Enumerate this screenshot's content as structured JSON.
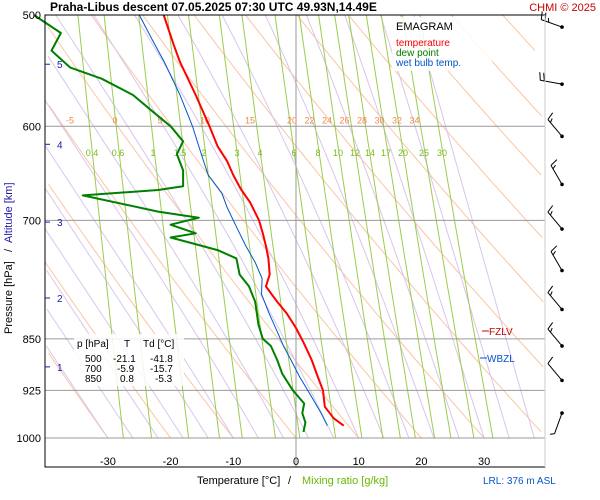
{
  "header": {
    "title": "Praha-Libus   descent   07.05.2025 07:30 UTC   49.93N,14.49E",
    "credit": "CHMI © 2025",
    "credit_color": "#cc0000"
  },
  "legend": {
    "title": "EMAGRAM",
    "items": [
      {
        "label": "temperature",
        "color": "#ff0000"
      },
      {
        "label": "dew point",
        "color": "#008000"
      },
      {
        "label": "wet bulb temp.",
        "color": "#0055cc"
      }
    ]
  },
  "axes": {
    "y_label_pressure": "Pressure [hPa]",
    "y_label_sep": "/",
    "y_label_altitude": "Altitude [km]",
    "x_label_temp": "Temperature [°C]",
    "x_label_sep": "/",
    "x_label_mix": "Mixing ratio [g/kg]"
  },
  "table": {
    "headers": [
      "p [hPa]",
      "T",
      "Td [°C]"
    ],
    "rows": [
      [
        "500",
        "-21.1",
        "-41.8"
      ],
      [
        "700",
        "-5.9",
        "-15.7"
      ],
      [
        "850",
        "0.8",
        "-5.3"
      ]
    ]
  },
  "markers": {
    "fzlv": "FZLV",
    "wbzl": "WBZL",
    "lrl": "LRL: 376 m ASL"
  },
  "chart_data": {
    "type": "line",
    "title": "EMAGRAM",
    "xlabel": "Temperature [°C]",
    "ylabel": "Pressure [hPa]",
    "xlim": [
      -40,
      40
    ],
    "ylim": [
      1000,
      500
    ],
    "y_scale": "log",
    "grid": true,
    "x_ticks": [
      -30,
      -20,
      -10,
      0,
      10,
      20,
      30
    ],
    "p_ticks": [
      500,
      600,
      700,
      850,
      925,
      1000
    ],
    "km_ticks": [
      {
        "label": "1",
        "p": 890
      },
      {
        "label": "2",
        "p": 795
      },
      {
        "label": "3",
        "p": 702
      },
      {
        "label": "4",
        "p": 618
      },
      {
        "label": "5",
        "p": 542
      }
    ],
    "dry_adiabat_labels": [
      -5,
      0,
      5,
      10,
      15
    ],
    "moist_adiabat_labels": [
      20,
      22,
      24,
      26,
      28,
      30,
      32,
      34
    ],
    "mixing_ratio_labels": [
      0.4,
      0.6,
      1,
      1.5,
      2,
      3,
      4,
      6,
      8,
      10,
      12,
      14,
      17,
      20,
      25,
      30
    ],
    "series": [
      {
        "name": "temperature",
        "color": "#ff0000",
        "points": [
          [
            7.6,
            980
          ],
          [
            6.0,
            968
          ],
          [
            4.6,
            950
          ],
          [
            4.3,
            925
          ],
          [
            3.5,
            905
          ],
          [
            2.5,
            880
          ],
          [
            1.2,
            855
          ],
          [
            0.0,
            835
          ],
          [
            -1.5,
            815
          ],
          [
            -3.0,
            800
          ],
          [
            -4.8,
            780
          ],
          [
            -4.2,
            765
          ],
          [
            -4.4,
            745
          ],
          [
            -4.8,
            730
          ],
          [
            -5.3,
            715
          ],
          [
            -5.9,
            700
          ],
          [
            -7.3,
            680
          ],
          [
            -8.8,
            665
          ],
          [
            -10.0,
            650
          ],
          [
            -11.0,
            635
          ],
          [
            -12.5,
            620
          ],
          [
            -13.8,
            600
          ],
          [
            -16.0,
            570
          ],
          [
            -18.5,
            540
          ],
          [
            -19.5,
            525
          ],
          [
            -21.1,
            500
          ]
        ]
      },
      {
        "name": "dew point",
        "color": "#008000",
        "points": [
          [
            1.2,
            990
          ],
          [
            1.5,
            975
          ],
          [
            1.0,
            960
          ],
          [
            1.3,
            945
          ],
          [
            -0.5,
            925
          ],
          [
            -2.2,
            900
          ],
          [
            -3.0,
            880
          ],
          [
            -4.0,
            860
          ],
          [
            -5.3,
            850
          ],
          [
            -6.0,
            830
          ],
          [
            -6.5,
            800
          ],
          [
            -7.5,
            780
          ],
          [
            -9.0,
            765
          ],
          [
            -9.5,
            745
          ],
          [
            -12.5,
            735
          ],
          [
            -15.0,
            730
          ],
          [
            -20.0,
            720
          ],
          [
            -16.0,
            715
          ],
          [
            -20.0,
            705
          ],
          [
            -15.5,
            697
          ],
          [
            -22.0,
            690
          ],
          [
            -34.0,
            672
          ],
          [
            -22.0,
            666
          ],
          [
            -18.0,
            662
          ],
          [
            -18.0,
            645
          ],
          [
            -19.0,
            628
          ],
          [
            -18.0,
            615
          ],
          [
            -20.0,
            600
          ],
          [
            -23.0,
            585
          ],
          [
            -26.0,
            570
          ],
          [
            -31.0,
            555
          ],
          [
            -36.0,
            545
          ],
          [
            -39.0,
            530
          ],
          [
            -37.5,
            515
          ],
          [
            -41.8,
            500
          ]
        ]
      },
      {
        "name": "wet bulb temp.",
        "color": "#0055cc",
        "points": [
          [
            5.0,
            980
          ],
          [
            4.0,
            960
          ],
          [
            2.5,
            935
          ],
          [
            0.6,
            905
          ],
          [
            -0.8,
            880
          ],
          [
            -2.0,
            860
          ],
          [
            -3.0,
            840
          ],
          [
            -4.3,
            815
          ],
          [
            -5.5,
            790
          ],
          [
            -5.4,
            770
          ],
          [
            -6.5,
            750
          ],
          [
            -8.0,
            730
          ],
          [
            -9.2,
            712
          ],
          [
            -10.0,
            700
          ],
          [
            -11.0,
            685
          ],
          [
            -11.8,
            670
          ],
          [
            -14.0,
            650
          ],
          [
            -15.0,
            630
          ],
          [
            -16.5,
            600
          ],
          [
            -18.5,
            570
          ],
          [
            -21.0,
            540
          ],
          [
            -23.0,
            520
          ],
          [
            -25.0,
            500
          ]
        ]
      }
    ],
    "levels": [
      {
        "name": "FZLV",
        "p": 830,
        "color": "#cc0000"
      },
      {
        "name": "WBZL",
        "p": 867,
        "color": "#0055cc"
      }
    ],
    "wind_barbs": [
      {
        "p": 510,
        "direction": 290,
        "speed_kt": 25
      },
      {
        "p": 560,
        "direction": 280,
        "speed_kt": 20
      },
      {
        "p": 610,
        "direction": 320,
        "speed_kt": 15
      },
      {
        "p": 660,
        "direction": 330,
        "speed_kt": 15
      },
      {
        "p": 710,
        "direction": 320,
        "speed_kt": 15
      },
      {
        "p": 760,
        "direction": 330,
        "speed_kt": 15
      },
      {
        "p": 810,
        "direction": 320,
        "speed_kt": 15
      },
      {
        "p": 860,
        "direction": 320,
        "speed_kt": 15
      },
      {
        "p": 910,
        "direction": 320,
        "speed_kt": 10
      },
      {
        "p": 960,
        "direction": 200,
        "speed_kt": 5
      }
    ]
  }
}
